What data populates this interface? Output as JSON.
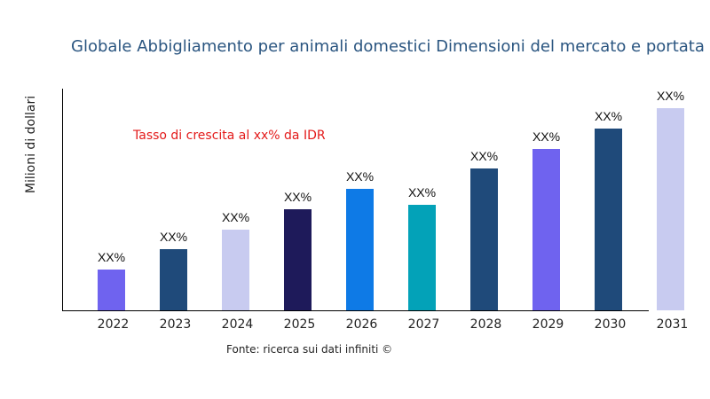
{
  "chart_data": {
    "type": "bar",
    "title": "Globale Abbigliamento per animali domestici Dimensioni del mercato e portata",
    "xlabel": "",
    "ylabel": "Milioni di dollari",
    "annotation": "Tasso di crescita al xx% da IDR",
    "source": "Fonte: ricerca sui dati infiniti ©",
    "categories": [
      "2022",
      "2023",
      "2024",
      "2025",
      "2026",
      "2027",
      "2028",
      "2029",
      "2030",
      "2031"
    ],
    "values": [
      46,
      69,
      91,
      114,
      137,
      119,
      160,
      182,
      205,
      228
    ],
    "data_labels": [
      "XX%",
      "XX%",
      "XX%",
      "XX%",
      "XX%",
      "XX%",
      "XX%",
      "XX%",
      "XX%",
      "XX%"
    ],
    "colors": [
      "#6f63ef",
      "#1f4a7a",
      "#c8cbf0",
      "#1e1a5a",
      "#0e7ae6",
      "#03a2b8",
      "#1f4a7a",
      "#6f63ef",
      "#1f4a7a",
      "#c8cbf0"
    ],
    "ylim": [
      0,
      250
    ],
    "grid": false,
    "y_ticks_shown": false
  }
}
